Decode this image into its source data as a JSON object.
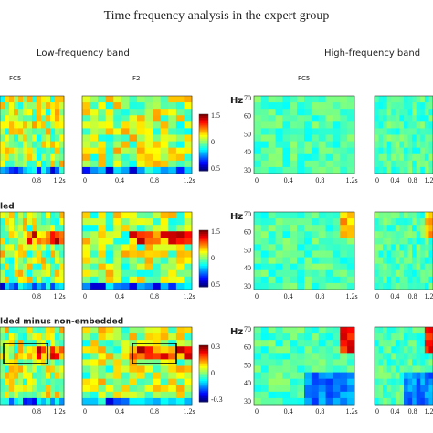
{
  "title": "Time frequency analysis in the expert group",
  "bands": [
    "Low-frequency band",
    "High-frequency band"
  ],
  "channels": [
    "FC5",
    "F2",
    "FC5"
  ],
  "hz": "Hz",
  "y_ticks": [
    "70",
    "60",
    "50",
    "40",
    "30"
  ],
  "x_ticks": [
    "0",
    "0.4",
    "0.8",
    "1.2s"
  ],
  "rows": [
    {
      "label": null,
      "colorbar": [
        "1.5",
        "0",
        "0.5"
      ]
    },
    {
      "label": "led",
      "colorbar": [
        "1.5",
        "0",
        "0.5"
      ]
    },
    {
      "label": "lded  minus  non-embedded",
      "colorbar": [
        "0.3",
        "0",
        "-0.3"
      ]
    }
  ]
}
